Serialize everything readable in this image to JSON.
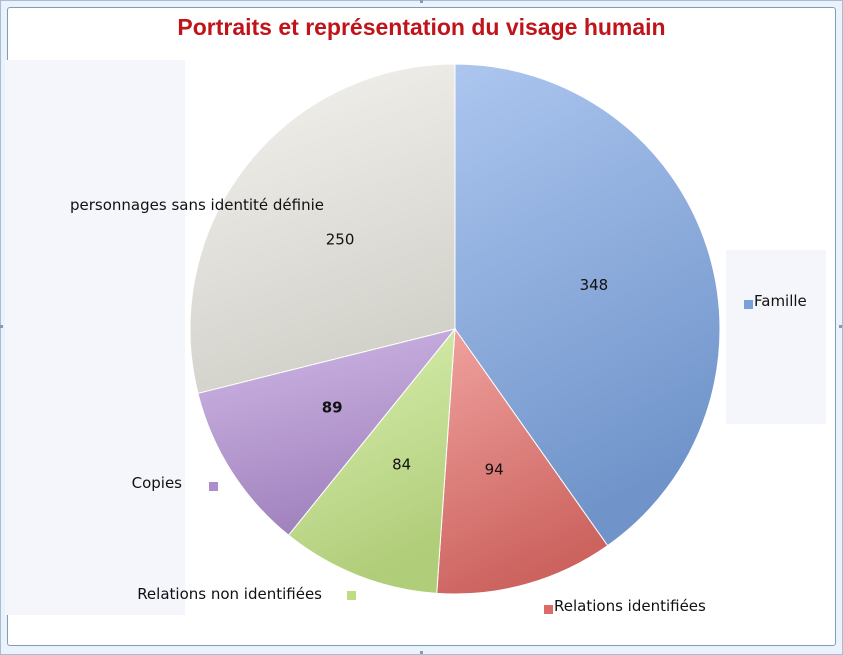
{
  "chart_data": {
    "type": "pie",
    "title": "Portraits et représentation du visage humain",
    "legend": "outside-labels",
    "slices": [
      {
        "label": "Famille",
        "value": 348,
        "color": "#7fa8e6"
      },
      {
        "label": "Relations identifiées",
        "value": 94,
        "color": "#e8706c"
      },
      {
        "label": "Relations non identifiées",
        "value": 84,
        "color": "#c8e98a"
      },
      {
        "label": "Copies",
        "value": 89,
        "color": "#b794d8"
      },
      {
        "label": "personnages sans identité définie",
        "value": 250,
        "color": "#efede6"
      }
    ]
  }
}
